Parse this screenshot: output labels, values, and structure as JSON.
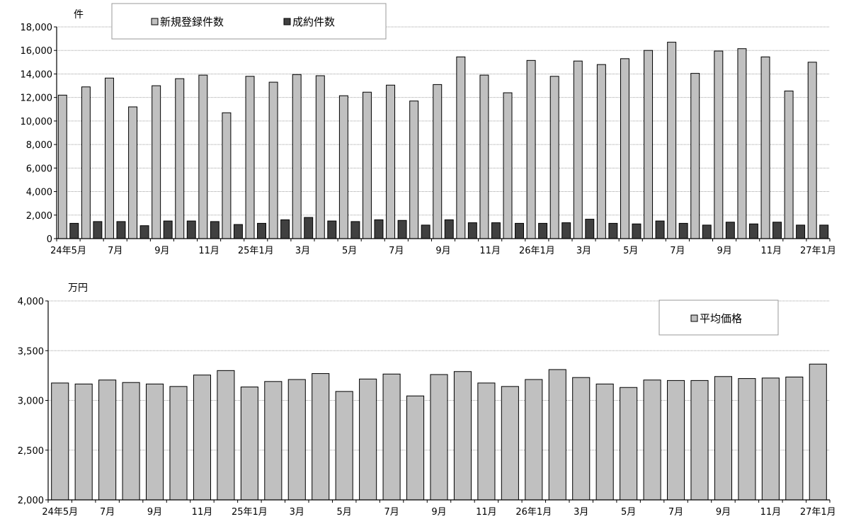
{
  "chart_data": [
    {
      "type": "bar",
      "unit_label": "件",
      "ylim": [
        0,
        18000
      ],
      "yticks": [
        "0",
        "2,000",
        "4,000",
        "6,000",
        "8,000",
        "10,000",
        "12,000",
        "14,000",
        "16,000",
        "18,000"
      ],
      "categories": [
        "24年5月",
        "6月",
        "7月",
        "8月",
        "9月",
        "10月",
        "11月",
        "12月",
        "25年1月",
        "2月",
        "3月",
        "4月",
        "5月",
        "6月",
        "7月",
        "8月",
        "9月",
        "10月",
        "11月",
        "12月",
        "26年1月",
        "2月",
        "3月",
        "4月",
        "5月",
        "6月",
        "7月",
        "8月",
        "9月",
        "10月",
        "11月",
        "12月",
        "27年1月"
      ],
      "xtick_labels": [
        "24年5月",
        "",
        "7月",
        "",
        "9月",
        "",
        "11月",
        "",
        "25年1月",
        "",
        "3月",
        "",
        "5月",
        "",
        "7月",
        "",
        "9月",
        "",
        "11月",
        "",
        "26年1月",
        "",
        "3月",
        "",
        "5月",
        "",
        "7月",
        "",
        "9月",
        "",
        "11月",
        "",
        "27年1月"
      ],
      "series": [
        {
          "name": "新規登録件数",
          "color": "#c0c0c0",
          "values": [
            12200,
            12900,
            13650,
            11200,
            13000,
            13600,
            13900,
            10700,
            13800,
            13300,
            13950,
            13850,
            12150,
            12450,
            13050,
            11700,
            13100,
            15450,
            13900,
            12400,
            15150,
            13800,
            15100,
            14800,
            15300,
            16000,
            16700,
            14050,
            15950,
            16150,
            15450,
            12550,
            15000
          ]
        },
        {
          "name": "成約件数",
          "color": "#404040",
          "values": [
            1300,
            1450,
            1450,
            1100,
            1500,
            1500,
            1450,
            1200,
            1300,
            1600,
            1800,
            1500,
            1450,
            1600,
            1550,
            1150,
            1600,
            1350,
            1350,
            1300,
            1300,
            1350,
            1650,
            1300,
            1250,
            1500,
            1300,
            1150,
            1400,
            1250,
            1400,
            1150,
            1150
          ]
        }
      ],
      "legend_position": "top-left"
    },
    {
      "type": "bar",
      "unit_label": "万円",
      "ylim": [
        2000,
        4000
      ],
      "yticks": [
        "2,000",
        "2,500",
        "3,000",
        "3,500",
        "4,000"
      ],
      "categories": [
        "24年5月",
        "6月",
        "7月",
        "8月",
        "9月",
        "10月",
        "11月",
        "12月",
        "25年1月",
        "2月",
        "3月",
        "4月",
        "5月",
        "6月",
        "7月",
        "8月",
        "9月",
        "10月",
        "11月",
        "12月",
        "26年1月",
        "2月",
        "3月",
        "4月",
        "5月",
        "6月",
        "7月",
        "8月",
        "9月",
        "10月",
        "11月",
        "12月",
        "27年1月"
      ],
      "xtick_labels": [
        "24年5月",
        "",
        "7月",
        "",
        "9月",
        "",
        "11月",
        "",
        "25年1月",
        "",
        "3月",
        "",
        "5月",
        "",
        "7月",
        "",
        "9月",
        "",
        "11月",
        "",
        "26年1月",
        "",
        "3月",
        "",
        "5月",
        "",
        "7月",
        "",
        "9月",
        "",
        "11月",
        "",
        "27年1月"
      ],
      "series": [
        {
          "name": "平均価格",
          "color": "#c0c0c0",
          "values": [
            3175,
            3165,
            3205,
            3180,
            3165,
            3140,
            3255,
            3300,
            3135,
            3190,
            3210,
            3270,
            3090,
            3215,
            3265,
            3045,
            3260,
            3290,
            3175,
            3140,
            3210,
            3310,
            3230,
            3165,
            3130,
            3205,
            3200,
            3200,
            3240,
            3220,
            3225,
            3235,
            3365
          ]
        }
      ],
      "legend_position": "top-right"
    }
  ]
}
